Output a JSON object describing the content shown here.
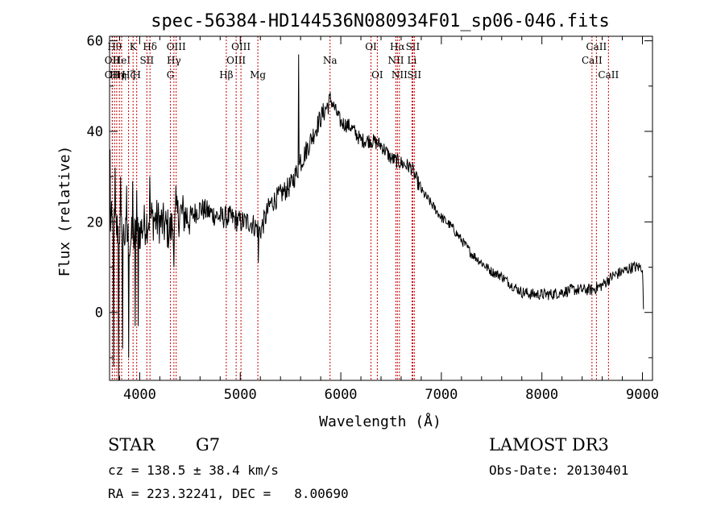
{
  "chart_data": {
    "type": "line",
    "title": "spec-56384-HD144536N080934F01_sp06-046.fits",
    "xlabel": "Wavelength (Å)",
    "ylabel": "Flux (relative)",
    "xlim": [
      3700,
      9100
    ],
    "ylim": [
      -15,
      61
    ],
    "x_ticks": [
      4000,
      5000,
      6000,
      7000,
      8000,
      9000
    ],
    "x_tick_labels": [
      "4000",
      "5000",
      "6000",
      "7000",
      "8000",
      "9000"
    ],
    "y_ticks": [
      0,
      20,
      40,
      60
    ],
    "y_tick_labels": [
      "0",
      "20",
      "40",
      "60"
    ],
    "continuum_points": [
      [
        3700,
        20
      ],
      [
        3800,
        18
      ],
      [
        3900,
        16
      ],
      [
        4000,
        18
      ],
      [
        4100,
        21
      ],
      [
        4200,
        20
      ],
      [
        4300,
        18
      ],
      [
        4400,
        22
      ],
      [
        4500,
        21
      ],
      [
        4600,
        23
      ],
      [
        4700,
        22
      ],
      [
        4800,
        21
      ],
      [
        4900,
        21
      ],
      [
        5000,
        20
      ],
      [
        5100,
        20
      ],
      [
        5200,
        18
      ],
      [
        5300,
        24
      ],
      [
        5400,
        26
      ],
      [
        5500,
        28
      ],
      [
        5600,
        33
      ],
      [
        5700,
        38
      ],
      [
        5800,
        43
      ],
      [
        5900,
        47
      ],
      [
        6000,
        42
      ],
      [
        6100,
        41
      ],
      [
        6200,
        38
      ],
      [
        6300,
        38
      ],
      [
        6400,
        37
      ],
      [
        6500,
        34
      ],
      [
        6600,
        33
      ],
      [
        6700,
        32
      ],
      [
        6800,
        27
      ],
      [
        6900,
        24
      ],
      [
        7000,
        21
      ],
      [
        7100,
        19
      ],
      [
        7200,
        16
      ],
      [
        7300,
        13
      ],
      [
        7400,
        11
      ],
      [
        7500,
        9
      ],
      [
        7600,
        8
      ],
      [
        7700,
        6
      ],
      [
        7800,
        4.5
      ],
      [
        7900,
        4
      ],
      [
        8000,
        4
      ],
      [
        8100,
        4
      ],
      [
        8200,
        4.5
      ],
      [
        8300,
        5
      ],
      [
        8400,
        5
      ],
      [
        8500,
        5
      ],
      [
        8600,
        6
      ],
      [
        8700,
        8
      ],
      [
        8800,
        9
      ],
      [
        8900,
        10
      ],
      [
        9000,
        10
      ],
      [
        9010,
        1
      ]
    ],
    "spikes": [
      {
        "x": 3705,
        "y": 36
      },
      {
        "x": 3740,
        "y": -12
      },
      {
        "x": 3755,
        "y": 32
      },
      {
        "x": 3790,
        "y": -15
      },
      {
        "x": 3810,
        "y": 30
      },
      {
        "x": 3830,
        "y": -8
      },
      {
        "x": 3870,
        "y": 28
      },
      {
        "x": 3890,
        "y": -10
      },
      {
        "x": 3930,
        "y": 29
      },
      {
        "x": 3955,
        "y": -3
      },
      {
        "x": 3970,
        "y": 27
      },
      {
        "x": 3985,
        "y": -3
      },
      {
        "x": 4100,
        "y": 30
      },
      {
        "x": 4340,
        "y": 10
      },
      {
        "x": 4360,
        "y": 28
      },
      {
        "x": 5180,
        "y": 11
      },
      {
        "x": 5580,
        "y": 57
      },
      {
        "x": 5600,
        "y": 35
      }
    ],
    "line_markers": [
      {
        "x": 3727,
        "label": "OII",
        "row": 2
      },
      {
        "x": 3727,
        "label": "OII",
        "row": 3
      },
      {
        "x": 3750,
        "label": "Hθ",
        "row": 1
      },
      {
        "x": 3771,
        "label": "Hη",
        "row": 3
      },
      {
        "x": 3798,
        "label": "Hη",
        "row": 3
      },
      {
        "x": 3820,
        "label": "HeI",
        "row": 2
      },
      {
        "x": 3889,
        "label": "Hζ",
        "row": 3
      },
      {
        "x": 3934,
        "label": "K",
        "row": 1
      },
      {
        "x": 3970,
        "label": "H",
        "row": 3
      },
      {
        "x": 4071,
        "label": "SII",
        "row": 2
      },
      {
        "x": 4102,
        "label": "Hδ",
        "row": 1
      },
      {
        "x": 4305,
        "label": "G",
        "row": 3
      },
      {
        "x": 4340,
        "label": "Hγ",
        "row": 2
      },
      {
        "x": 4363,
        "label": "OIII",
        "row": 1
      },
      {
        "x": 4861,
        "label": "Hβ",
        "row": 3
      },
      {
        "x": 4959,
        "label": "OIII",
        "row": 2
      },
      {
        "x": 5007,
        "label": "OIII",
        "row": 1
      },
      {
        "x": 5175,
        "label": "Mg",
        "row": 3
      },
      {
        "x": 5893,
        "label": "Na",
        "row": 2
      },
      {
        "x": 6300,
        "label": "OI",
        "row": 1
      },
      {
        "x": 6363,
        "label": "OI",
        "row": 3
      },
      {
        "x": 6548,
        "label": "NII",
        "row": 2
      },
      {
        "x": 6563,
        "label": "Hα",
        "row": 1
      },
      {
        "x": 6583,
        "label": "NII",
        "row": 3
      },
      {
        "x": 6708,
        "label": "Li",
        "row": 2
      },
      {
        "x": 6716,
        "label": "SII",
        "row": 1
      },
      {
        "x": 6731,
        "label": "SII",
        "row": 3
      },
      {
        "x": 8498,
        "label": "CaII",
        "row": 2
      },
      {
        "x": 8542,
        "label": "CaII",
        "row": 1
      },
      {
        "x": 8662,
        "label": "CaII",
        "row": 3
      }
    ]
  },
  "footer": {
    "object_class": "STAR",
    "subclass": "G7",
    "survey": "LAMOST DR3",
    "redshift_line": "cz = 138.5 ± 38.4 km/s",
    "obs_date": "Obs-Date: 20130401",
    "coords": "RA = 223.32241, DEC =   8.00690"
  },
  "colors": {
    "spectrum": "#000000",
    "marker": "#cc0000",
    "axes": "#000000"
  }
}
